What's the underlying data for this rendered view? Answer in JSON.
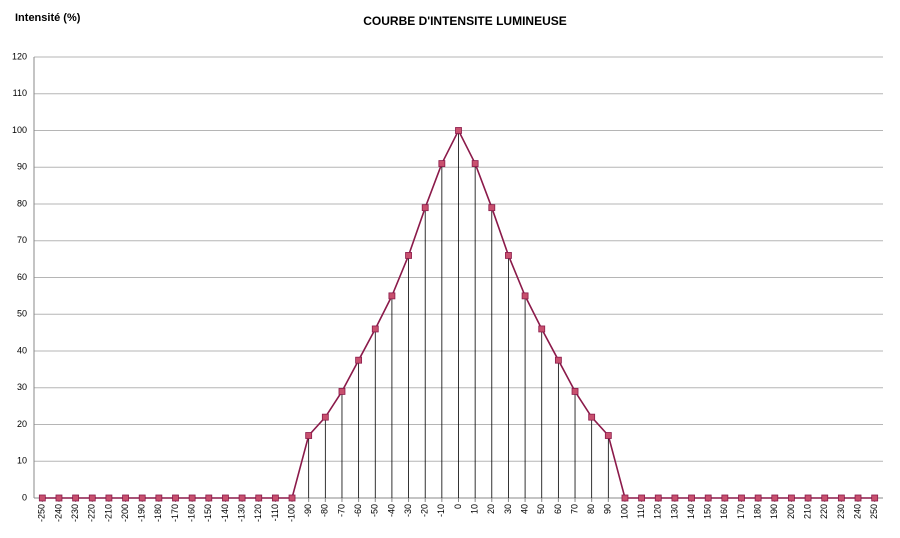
{
  "chart_data": {
    "type": "line",
    "title": "COURBE D'INTENSITE LUMINEUSE",
    "y_label": "Intensité (%)",
    "x": [
      -250,
      -240,
      -230,
      -220,
      -210,
      -200,
      -190,
      -180,
      -170,
      -160,
      -150,
      -140,
      -130,
      -120,
      -110,
      -100,
      -90,
      -80,
      -70,
      -60,
      -50,
      -40,
      -30,
      -20,
      -10,
      0,
      10,
      20,
      30,
      40,
      50,
      60,
      70,
      80,
      90,
      100,
      110,
      120,
      130,
      140,
      150,
      160,
      170,
      180,
      190,
      200,
      210,
      220,
      230,
      240,
      250
    ],
    "series": [
      {
        "name": "Intensité",
        "color": "#8b1a4a",
        "marker_color": "#c8506e",
        "values": [
          0,
          0,
          0,
          0,
          0,
          0,
          0,
          0,
          0,
          0,
          0,
          0,
          0,
          0,
          0,
          0,
          17,
          22,
          29,
          37.5,
          46,
          55,
          66,
          79,
          91,
          100,
          91,
          79,
          66,
          55,
          46,
          37.5,
          29,
          22,
          17,
          0,
          0,
          0,
          0,
          0,
          0,
          0,
          0,
          0,
          0,
          0,
          0,
          0,
          0,
          0,
          0
        ]
      }
    ],
    "xlim": [
      -255,
      255
    ],
    "xticks": [
      -250,
      -240,
      -230,
      -220,
      -210,
      -200,
      -190,
      -180,
      -170,
      -160,
      -150,
      -140,
      -130,
      -120,
      -110,
      -100,
      -90,
      -80,
      -70,
      -60,
      -50,
      -40,
      -30,
      -20,
      -10,
      0,
      10,
      20,
      30,
      40,
      50,
      60,
      70,
      80,
      90,
      100,
      110,
      120,
      130,
      140,
      150,
      160,
      170,
      180,
      190,
      200,
      210,
      220,
      230,
      240,
      250
    ],
    "ylim": [
      0,
      120
    ],
    "yticks": [
      0,
      10,
      20,
      30,
      40,
      50,
      60,
      70,
      80,
      90,
      100,
      110,
      120
    ],
    "grid": true,
    "drop_lines": true
  }
}
